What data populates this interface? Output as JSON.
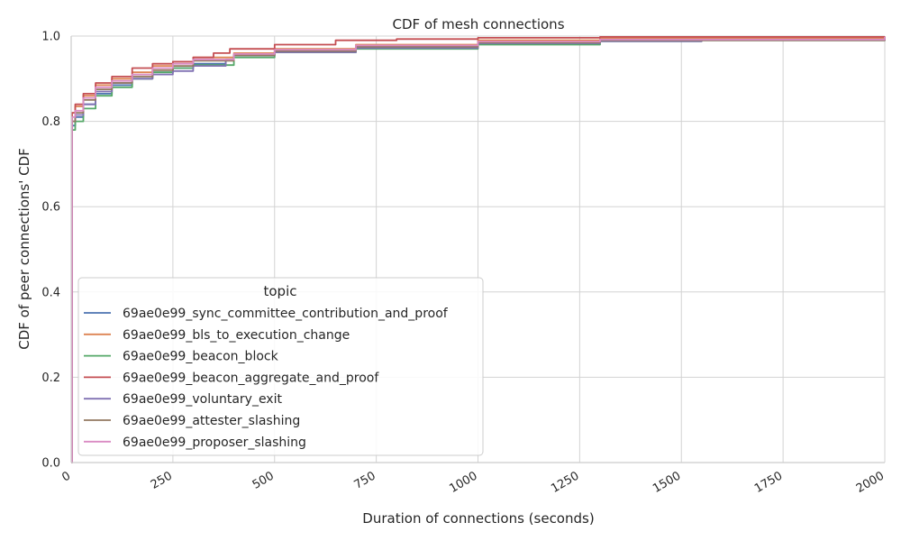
{
  "chart_data": {
    "type": "line",
    "title": "CDF of mesh connections",
    "xlabel": "Duration of connections (seconds)",
    "ylabel": "CDF of peer connections' CDF",
    "xlim": [
      0,
      2000
    ],
    "ylim": [
      0,
      1.0
    ],
    "xticks": [
      "0",
      "250",
      "500",
      "750",
      "1000",
      "1250",
      "1500",
      "1750",
      "2000"
    ],
    "yticks": [
      "0.0",
      "0.2",
      "0.4",
      "0.6",
      "0.8",
      "1.0"
    ],
    "grid": true,
    "legend": {
      "title": "topic",
      "placement": "lower-left"
    },
    "series": [
      {
        "name": "69ae0e99_sync_committee_contribution_and_proof",
        "color": "#4c72b0",
        "points": [
          [
            0,
            0
          ],
          [
            2,
            0.79
          ],
          [
            10,
            0.81
          ],
          [
            30,
            0.84
          ],
          [
            60,
            0.865
          ],
          [
            100,
            0.885
          ],
          [
            150,
            0.9
          ],
          [
            200,
            0.915
          ],
          [
            250,
            0.925
          ],
          [
            300,
            0.935
          ],
          [
            380,
            0.945
          ],
          [
            400,
            0.955
          ],
          [
            500,
            0.962
          ],
          [
            700,
            0.972
          ],
          [
            1000,
            0.983
          ],
          [
            1300,
            0.988
          ],
          [
            1550,
            0.992
          ],
          [
            1560,
            0.995
          ],
          [
            2000,
            0.997
          ]
        ]
      },
      {
        "name": "69ae0e99_bls_to_execution_change",
        "color": "#dd8452",
        "points": [
          [
            0,
            0
          ],
          [
            2,
            0.82
          ],
          [
            10,
            0.835
          ],
          [
            30,
            0.86
          ],
          [
            60,
            0.885
          ],
          [
            100,
            0.9
          ],
          [
            150,
            0.915
          ],
          [
            200,
            0.93
          ],
          [
            250,
            0.94
          ],
          [
            300,
            0.95
          ],
          [
            400,
            0.96
          ],
          [
            500,
            0.97
          ],
          [
            700,
            0.98
          ],
          [
            1000,
            0.99
          ],
          [
            1300,
            0.995
          ],
          [
            2000,
            0.998
          ]
        ]
      },
      {
        "name": "69ae0e99_beacon_block",
        "color": "#55a868",
        "points": [
          [
            0,
            0
          ],
          [
            2,
            0.78
          ],
          [
            10,
            0.8
          ],
          [
            30,
            0.83
          ],
          [
            60,
            0.86
          ],
          [
            100,
            0.88
          ],
          [
            150,
            0.9
          ],
          [
            200,
            0.915
          ],
          [
            250,
            0.925
          ],
          [
            300,
            0.932
          ],
          [
            400,
            0.95
          ],
          [
            500,
            0.962
          ],
          [
            700,
            0.97
          ],
          [
            1000,
            0.98
          ],
          [
            1300,
            0.988
          ],
          [
            1550,
            0.99
          ],
          [
            2000,
            0.997
          ]
        ]
      },
      {
        "name": "69ae0e99_beacon_aggregate_and_proof",
        "color": "#c44e52",
        "points": [
          [
            0,
            0
          ],
          [
            2,
            0.82
          ],
          [
            10,
            0.84
          ],
          [
            30,
            0.865
          ],
          [
            60,
            0.89
          ],
          [
            100,
            0.905
          ],
          [
            150,
            0.925
          ],
          [
            200,
            0.935
          ],
          [
            250,
            0.94
          ],
          [
            300,
            0.95
          ],
          [
            350,
            0.96
          ],
          [
            390,
            0.97
          ],
          [
            500,
            0.98
          ],
          [
            650,
            0.99
          ],
          [
            800,
            0.993
          ],
          [
            1000,
            0.996
          ],
          [
            1300,
            0.998
          ],
          [
            2000,
            0.999
          ]
        ]
      },
      {
        "name": "69ae0e99_voluntary_exit",
        "color": "#8172b3",
        "points": [
          [
            0,
            0
          ],
          [
            2,
            0.8
          ],
          [
            10,
            0.815
          ],
          [
            30,
            0.84
          ],
          [
            60,
            0.87
          ],
          [
            100,
            0.89
          ],
          [
            150,
            0.9
          ],
          [
            200,
            0.91
          ],
          [
            250,
            0.918
          ],
          [
            300,
            0.93
          ],
          [
            380,
            0.945
          ],
          [
            400,
            0.955
          ],
          [
            500,
            0.962
          ],
          [
            700,
            0.972
          ],
          [
            1000,
            0.983
          ],
          [
            1300,
            0.988
          ],
          [
            1550,
            0.99
          ],
          [
            2000,
            0.996
          ]
        ]
      },
      {
        "name": "69ae0e99_attester_slashing",
        "color": "#937860",
        "points": [
          [
            0,
            0
          ],
          [
            2,
            0.8
          ],
          [
            10,
            0.82
          ],
          [
            30,
            0.85
          ],
          [
            60,
            0.875
          ],
          [
            100,
            0.89
          ],
          [
            150,
            0.905
          ],
          [
            200,
            0.92
          ],
          [
            250,
            0.93
          ],
          [
            300,
            0.942
          ],
          [
            400,
            0.955
          ],
          [
            500,
            0.965
          ],
          [
            700,
            0.975
          ],
          [
            1000,
            0.985
          ],
          [
            1300,
            0.99
          ],
          [
            2000,
            0.997
          ]
        ]
      },
      {
        "name": "69ae0e99_proposer_slashing",
        "color": "#da8bc3",
        "points": [
          [
            0,
            0
          ],
          [
            2,
            0.81
          ],
          [
            10,
            0.825
          ],
          [
            30,
            0.855
          ],
          [
            60,
            0.88
          ],
          [
            100,
            0.895
          ],
          [
            150,
            0.91
          ],
          [
            200,
            0.925
          ],
          [
            250,
            0.935
          ],
          [
            300,
            0.945
          ],
          [
            400,
            0.958
          ],
          [
            500,
            0.968
          ],
          [
            700,
            0.978
          ],
          [
            1000,
            0.987
          ],
          [
            1300,
            0.992
          ],
          [
            2000,
            0.998
          ]
        ]
      }
    ]
  }
}
